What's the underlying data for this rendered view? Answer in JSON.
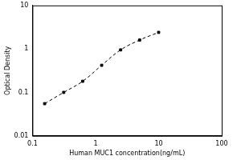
{
  "chart_data": {
    "type": "line",
    "x_label": "Human MUC1 concentration(ng/mL)",
    "y_label": "Optical Density",
    "x": [
      0.156,
      0.313,
      0.625,
      1.25,
      2.5,
      5,
      10
    ],
    "values": [
      0.055,
      0.1,
      0.18,
      0.42,
      0.95,
      1.6,
      2.4
    ],
    "color": "#000000",
    "marker": "square",
    "line_style": "dashed",
    "log": true,
    "grid": false,
    "xlim": [
      0.1,
      100
    ],
    "xticks": [
      0.1,
      1,
      10,
      100
    ],
    "ylim": [
      0.01,
      10
    ],
    "yticks": [
      0.01,
      0.1,
      1,
      10
    ]
  }
}
